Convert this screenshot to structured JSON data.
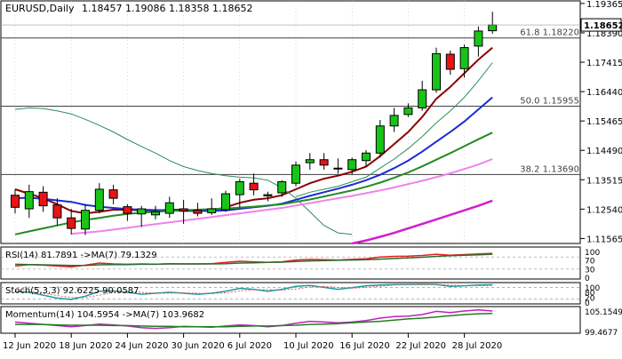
{
  "header": {
    "symbol": "EURUSD,Daily",
    "ohlc": "1.18457 1.19086 1.18358 1.18652"
  },
  "colors": {
    "bull": "#18c418",
    "bear": "#e81414",
    "ma_fast": "#8b0000",
    "ma_thin": "#2e8b57",
    "ma_blue": "#1a2bd6",
    "ma_green": "#228b22",
    "ma_violet": "#ee82ee",
    "ma_magenta": "#d020d0",
    "fib_line": "#404040",
    "grid": "#b8b8b8"
  },
  "chart_data": [
    {
      "type": "candlestick",
      "title": "EURUSD,Daily",
      "ylim": [
        1.114,
        1.1945
      ],
      "y_ticks": [
        "1.19365",
        "1.18390",
        "1.17415",
        "1.16440",
        "1.15465",
        "1.14490",
        "1.13515",
        "1.12540",
        "1.11565"
      ],
      "x_ticks": [
        {
          "i": 0,
          "label": "12 Jun 2020"
        },
        {
          "i": 4,
          "label": "18 Jun 2020"
        },
        {
          "i": 8,
          "label": "24 Jun 2020"
        },
        {
          "i": 12,
          "label": "30 Jun 2020"
        },
        {
          "i": 16,
          "label": "6 Jul 2020"
        },
        {
          "i": 20,
          "label": "10 Jul 2020"
        },
        {
          "i": 24,
          "label": "16 Jul 2020"
        },
        {
          "i": 28,
          "label": "22 Jul 2020"
        },
        {
          "i": 32,
          "label": "28 Jul 2020"
        }
      ],
      "current_price": "1.18652",
      "fib_levels": [
        {
          "label": "61.8 1.18220",
          "value": 1.1822
        },
        {
          "label": "50.0 1.15955",
          "value": 1.15955
        },
        {
          "label": "38.2 1.13690",
          "value": 1.1369
        }
      ],
      "candles": [
        {
          "o": 1.13,
          "h": 1.132,
          "l": 1.124,
          "c": 1.126
        },
        {
          "o": 1.1255,
          "h": 1.1335,
          "l": 1.1225,
          "c": 1.1312
        },
        {
          "o": 1.131,
          "h": 1.133,
          "l": 1.1245,
          "c": 1.1265
        },
        {
          "o": 1.1268,
          "h": 1.129,
          "l": 1.12,
          "c": 1.1225
        },
        {
          "o": 1.1225,
          "h": 1.1255,
          "l": 1.117,
          "c": 1.119
        },
        {
          "o": 1.1188,
          "h": 1.127,
          "l": 1.1168,
          "c": 1.125
        },
        {
          "o": 1.125,
          "h": 1.134,
          "l": 1.124,
          "c": 1.132
        },
        {
          "o": 1.1318,
          "h": 1.1335,
          "l": 1.127,
          "c": 1.129
        },
        {
          "o": 1.1262,
          "h": 1.127,
          "l": 1.1215,
          "c": 1.124
        },
        {
          "o": 1.1238,
          "h": 1.1265,
          "l": 1.1195,
          "c": 1.1255
        },
        {
          "o": 1.1235,
          "h": 1.1265,
          "l": 1.122,
          "c": 1.1245
        },
        {
          "o": 1.124,
          "h": 1.1295,
          "l": 1.1225,
          "c": 1.1275
        },
        {
          "o": 1.1255,
          "h": 1.1285,
          "l": 1.1205,
          "c": 1.1248
        },
        {
          "o": 1.125,
          "h": 1.1275,
          "l": 1.123,
          "c": 1.124
        },
        {
          "o": 1.1242,
          "h": 1.129,
          "l": 1.1235,
          "c": 1.1255
        },
        {
          "o": 1.1252,
          "h": 1.1315,
          "l": 1.1245,
          "c": 1.1305
        },
        {
          "o": 1.1302,
          "h": 1.1355,
          "l": 1.126,
          "c": 1.1345
        },
        {
          "o": 1.134,
          "h": 1.1372,
          "l": 1.13,
          "c": 1.1318
        },
        {
          "o": 1.1298,
          "h": 1.1312,
          "l": 1.128,
          "c": 1.1302
        },
        {
          "o": 1.1308,
          "h": 1.135,
          "l": 1.1295,
          "c": 1.1345
        },
        {
          "o": 1.134,
          "h": 1.1412,
          "l": 1.133,
          "c": 1.14
        },
        {
          "o": 1.1408,
          "h": 1.144,
          "l": 1.1385,
          "c": 1.1418
        },
        {
          "o": 1.1418,
          "h": 1.144,
          "l": 1.1385,
          "c": 1.14
        },
        {
          "o": 1.139,
          "h": 1.1422,
          "l": 1.1372,
          "c": 1.139
        },
        {
          "o": 1.1385,
          "h": 1.1425,
          "l": 1.137,
          "c": 1.1418
        },
        {
          "o": 1.1415,
          "h": 1.145,
          "l": 1.1395,
          "c": 1.144
        },
        {
          "o": 1.144,
          "h": 1.155,
          "l": 1.1425,
          "c": 1.153
        },
        {
          "o": 1.153,
          "h": 1.159,
          "l": 1.151,
          "c": 1.1565
        },
        {
          "o": 1.1568,
          "h": 1.1605,
          "l": 1.156,
          "c": 1.159
        },
        {
          "o": 1.159,
          "h": 1.168,
          "l": 1.158,
          "c": 1.165
        },
        {
          "o": 1.165,
          "h": 1.179,
          "l": 1.164,
          "c": 1.177
        },
        {
          "o": 1.1768,
          "h": 1.178,
          "l": 1.17,
          "c": 1.1718
        },
        {
          "o": 1.172,
          "h": 1.18,
          "l": 1.169,
          "c": 1.179
        },
        {
          "o": 1.1795,
          "h": 1.186,
          "l": 1.176,
          "c": 1.1845
        },
        {
          "o": 1.1846,
          "h": 1.1909,
          "l": 1.1836,
          "c": 1.1865
        }
      ],
      "overlays": [
        {
          "color": "#8b0000",
          "width": 2,
          "values": [
            1.132,
            1.1305,
            1.129,
            1.127,
            1.1248,
            1.124,
            1.1245,
            1.1252,
            1.1252,
            1.125,
            1.1249,
            1.1252,
            1.1252,
            1.125,
            1.125,
            1.126,
            1.1275,
            1.1285,
            1.129,
            1.13,
            1.132,
            1.134,
            1.1355,
            1.1365,
            1.1378,
            1.1395,
            1.143,
            1.147,
            1.151,
            1.156,
            1.162,
            1.166,
            1.1705,
            1.175,
            1.179
          ]
        },
        {
          "color": "#2e8b57",
          "width": 1,
          "values": [
            null,
            null,
            null,
            null,
            null,
            null,
            null,
            null,
            null,
            null,
            null,
            null,
            null,
            null,
            null,
            null,
            null,
            null,
            null,
            null,
            1.1295,
            1.131,
            1.132,
            1.133,
            1.1345,
            1.136,
            1.139,
            1.142,
            1.1455,
            1.1495,
            1.154,
            1.158,
            1.1625,
            1.168,
            1.174
          ]
        },
        {
          "color": "#2e8b57",
          "width": 1,
          "values": [
            1.1585,
            1.159,
            1.1588,
            1.158,
            1.157,
            1.1552,
            1.1532,
            1.151,
            1.1485,
            1.1462,
            1.144,
            1.1415,
            1.1395,
            1.1382,
            1.1372,
            1.1365,
            1.136,
            1.1358,
            1.135,
            1.1325,
            1.129,
            1.1245,
            1.12,
            1.1175,
            1.117
          ]
        },
        {
          "color": "#1a2bd6",
          "width": 2,
          "values": [
            1.129,
            1.1292,
            1.1288,
            1.1283,
            1.1278,
            1.1268,
            1.1262,
            1.1258,
            1.1254,
            1.1252,
            1.1251,
            1.125,
            1.1248,
            1.1248,
            1.1248,
            1.125,
            1.1255,
            1.126,
            1.1265,
            1.1272,
            1.1285,
            1.1298,
            1.131,
            1.1322,
            1.1335,
            1.135,
            1.1368,
            1.139,
            1.1415,
            1.1445,
            1.1478,
            1.151,
            1.1545,
            1.1585,
            1.1625
          ]
        },
        {
          "color": "#228b22",
          "width": 2,
          "values": [
            1.117,
            1.118,
            1.119,
            1.12,
            1.121,
            1.1218,
            1.1225,
            1.1232,
            1.1238,
            1.1242,
            1.1245,
            1.1248,
            1.125,
            1.1252,
            1.1254,
            1.1256,
            1.1259,
            1.1262,
            1.1266,
            1.127,
            1.1278,
            1.1286,
            1.1296,
            1.1306,
            1.1316,
            1.1328,
            1.1342,
            1.1358,
            1.1376,
            1.1396,
            1.1418,
            1.144,
            1.1463,
            1.1486,
            1.1508
          ]
        },
        {
          "color": "#ee82ee",
          "width": 2,
          "values": [
            null,
            null,
            null,
            null,
            1.1172,
            1.1176,
            1.118,
            1.1186,
            1.1192,
            1.1198,
            1.1204,
            1.121,
            1.1216,
            1.1222,
            1.1228,
            1.1234,
            1.124,
            1.1246,
            1.1252,
            1.1258,
            1.1266,
            1.1274,
            1.1282,
            1.129,
            1.1298,
            1.1307,
            1.1316,
            1.1326,
            1.1337,
            1.1348,
            1.136,
            1.1373,
            1.1387,
            1.1402,
            1.142
          ]
        },
        {
          "color": "#d020d0",
          "width": 2.5,
          "values": [
            null,
            null,
            null,
            null,
            null,
            null,
            null,
            null,
            null,
            null,
            null,
            null,
            null,
            null,
            null,
            null,
            null,
            null,
            null,
            null,
            null,
            null,
            null,
            null,
            1.114,
            1.115,
            1.1162,
            1.1175,
            1.119,
            1.1205,
            1.122,
            1.1235,
            1.125,
            1.1265,
            1.1282
          ]
        }
      ]
    },
    {
      "type": "line",
      "title": "RSI(14) 81.7891   ->MA(7) 79.1329",
      "ylim": [
        0,
        100
      ],
      "y_ticks": [
        "100",
        "70",
        "30",
        "0"
      ],
      "levels": [
        70,
        30
      ],
      "series": [
        {
          "color": "#e82020",
          "width": 1.5,
          "values": [
            40,
            45,
            43,
            40,
            37,
            43,
            50,
            47,
            46,
            47,
            46,
            48,
            47,
            47,
            48,
            52,
            56,
            54,
            52,
            54,
            60,
            62,
            61,
            60,
            62,
            64,
            70,
            72,
            73,
            75,
            79,
            76,
            78,
            80,
            82
          ]
        },
        {
          "color": "#2e6b2e",
          "width": 1.5,
          "values": [
            46,
            45,
            44,
            43,
            42,
            42,
            44,
            45,
            45,
            46,
            46,
            47,
            47,
            47,
            47,
            48,
            50,
            51,
            52,
            53,
            55,
            57,
            58,
            59,
            60,
            61,
            63,
            65,
            67,
            69,
            72,
            74,
            76,
            77,
            79
          ]
        }
      ]
    },
    {
      "type": "line",
      "title": "Stoch(5,3,3) 92.6225 90.0587",
      "ylim": [
        0,
        100
      ],
      "y_ticks": [
        "100",
        "80",
        "20",
        "0"
      ],
      "levels": [
        80,
        20
      ],
      "series": [
        {
          "color": "#1b9a9a",
          "width": 1.5,
          "values": [
            60,
            55,
            40,
            25,
            18,
            35,
            60,
            62,
            55,
            45,
            50,
            55,
            50,
            45,
            50,
            60,
            75,
            70,
            60,
            70,
            85,
            90,
            80,
            70,
            78,
            88,
            92,
            94,
            95,
            96,
            95,
            85,
            88,
            92,
            93
          ]
        },
        {
          "color": "#d06060",
          "width": 1,
          "dash": "2,2",
          "values": [
            62,
            58,
            50,
            38,
            28,
            28,
            40,
            55,
            58,
            55,
            50,
            50,
            52,
            50,
            48,
            52,
            62,
            68,
            68,
            66,
            72,
            82,
            85,
            80,
            76,
            80,
            86,
            92,
            94,
            95,
            95,
            92,
            89,
            88,
            90
          ]
        }
      ]
    },
    {
      "type": "line",
      "title": "Momentum(14) 104.5954   ->MA(7) 103.9682",
      "ylim": [
        99.2,
        105.5
      ],
      "y_ticks": [
        "105.1549",
        "99.4677"
      ],
      "series": [
        {
          "color": "#c020c0",
          "width": 1.5,
          "values": [
            101.8,
            101.5,
            101.2,
            100.9,
            100.6,
            100.9,
            101.3,
            101.1,
            100.8,
            100.4,
            100.2,
            100.4,
            100.7,
            100.6,
            100.5,
            100.8,
            101.1,
            100.9,
            100.6,
            100.9,
            101.5,
            102.0,
            101.8,
            101.6,
            101.8,
            102.2,
            102.8,
            103.2,
            103.3,
            103.7,
            104.5,
            104.2,
            104.6,
            104.9,
            104.6
          ]
        },
        {
          "color": "#208020",
          "width": 1.5,
          "values": [
            101.2,
            101.2,
            101.2,
            101.1,
            101.0,
            101.0,
            101.0,
            100.9,
            100.9,
            100.8,
            100.7,
            100.7,
            100.6,
            100.6,
            100.6,
            100.6,
            100.7,
            100.8,
            100.8,
            100.9,
            101.0,
            101.2,
            101.3,
            101.4,
            101.6,
            101.8,
            102.0,
            102.3,
            102.6,
            102.8,
            103.1,
            103.4,
            103.7,
            103.9,
            104.0
          ]
        }
      ]
    }
  ]
}
